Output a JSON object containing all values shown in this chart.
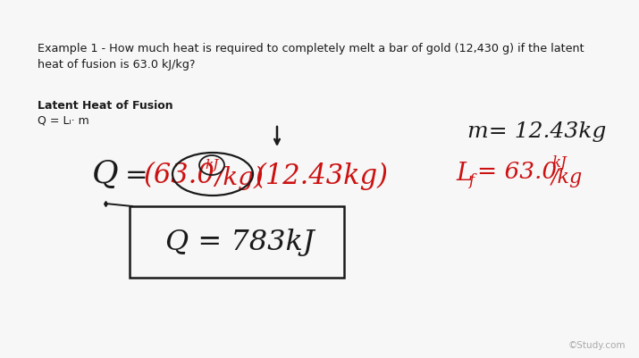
{
  "background_color": "#f7f7f7",
  "example_text_line1": "Example 1 - How much heat is required to completely melt a bar of gold (12,430 g) if the latent",
  "example_text_line2": "heat of fusion is 63.0 kJ/kg?",
  "label_bold": "Latent Heat of Fusion",
  "label_formula": "Q = Lₗ· m",
  "watermark": "©Study.com",
  "black_color": "#1a1a1a",
  "red_color": "#cc1111"
}
